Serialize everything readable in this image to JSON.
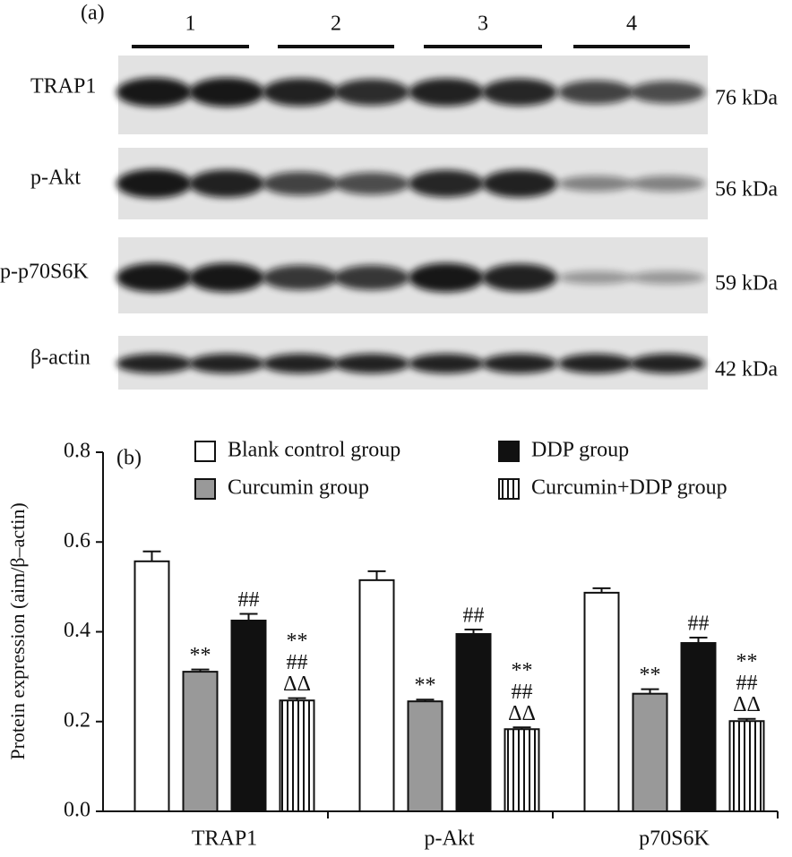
{
  "blot": {
    "panel_label": "(a)",
    "groups": [
      "1",
      "2",
      "3",
      "4"
    ],
    "rows": [
      {
        "label": "TRAP1",
        "size": "76 kDa"
      },
      {
        "label": "p-Akt",
        "size": "56 kDa"
      },
      {
        "label": "p-p70S6K",
        "size": "59 kDa"
      },
      {
        "label": "β-actin",
        "size": "42 kDa"
      }
    ]
  },
  "chart_data": {
    "type": "bar",
    "panel_label": "(b)",
    "y_label": "Protein expression (aim/β–actin)",
    "categories": [
      "TRAP1",
      "p-Akt",
      "p70S6K"
    ],
    "series": [
      {
        "name": "Blank control group",
        "color": "#ffffff",
        "values": [
          0.557,
          0.515,
          0.487
        ],
        "errors": [
          0.022,
          0.02,
          0.01
        ],
        "annotations": [
          null,
          null,
          null
        ]
      },
      {
        "name": "Curcumin group",
        "color": "#999999",
        "values": [
          0.311,
          0.245,
          0.262
        ],
        "errors": [
          0.005,
          0.004,
          0.01
        ],
        "annotations": [
          [
            "**"
          ],
          [
            "**"
          ],
          [
            "**"
          ]
        ]
      },
      {
        "name": "DDP group",
        "color": "#111111",
        "values": [
          0.425,
          0.395,
          0.375
        ],
        "errors": [
          0.015,
          0.01,
          0.012
        ],
        "annotations": [
          [
            "##"
          ],
          [
            "##"
          ],
          [
            "##"
          ]
        ]
      },
      {
        "name": "Curcumin+DDP group",
        "color": "#ffffff",
        "hatch": true,
        "values": [
          0.247,
          0.183,
          0.201
        ],
        "errors": [
          0.005,
          0.004,
          0.005
        ],
        "annotations": [
          [
            "**",
            "##",
            "ΔΔ"
          ],
          [
            "**",
            "##",
            "ΔΔ"
          ],
          [
            "**",
            "##",
            "ΔΔ"
          ]
        ]
      }
    ],
    "ylim": [
      0,
      0.8
    ],
    "yticks": [
      {
        "value": 0,
        "label": "0.0"
      },
      0.2,
      0.4,
      0.6,
      0.8
    ]
  }
}
